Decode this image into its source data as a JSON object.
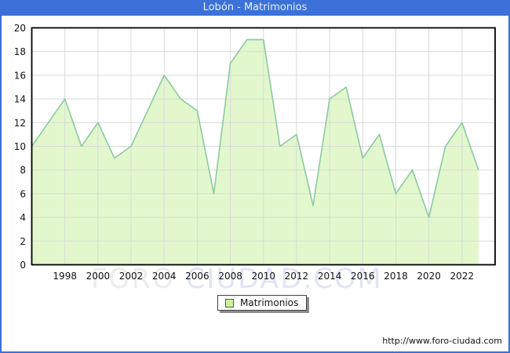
{
  "title": "Lobón - Matrimonios",
  "legend": {
    "label": "Matrimonios"
  },
  "watermark": {
    "part1": "FORO",
    "part2": "CIUDAD.COM"
  },
  "footer": {
    "url": "http://www.foro-ciudad.com"
  },
  "colors": {
    "titlebar_blue": "#3B71D8",
    "title_text": "#EAF0FA",
    "area_fill": "#E2F8CC",
    "line_green": "#8BC9A0",
    "gridline_gray": "#D9D9D9",
    "plot_border": "#000000",
    "axis_text": "#111111",
    "legend_swatch_fill": "#CBF59B",
    "watermark_gray": "#EDEDED",
    "watermark_lavender": "#E1E4F6"
  },
  "chart_data": {
    "type": "area",
    "title": "Lobón - Matrimonios",
    "series_name": "Matrimonios",
    "x": [
      1996,
      1997,
      1998,
      1999,
      2000,
      2001,
      2002,
      2003,
      2004,
      2005,
      2006,
      2007,
      2008,
      2009,
      2010,
      2011,
      2012,
      2013,
      2014,
      2015,
      2016,
      2017,
      2018,
      2019,
      2020,
      2021,
      2022,
      2023
    ],
    "values": [
      10,
      12,
      14,
      10,
      12,
      9,
      10,
      13,
      16,
      14,
      13,
      6,
      17,
      19,
      19,
      10,
      11,
      5,
      14,
      15,
      9,
      11,
      6,
      8,
      4,
      10,
      12,
      8
    ],
    "xlim": [
      1996,
      2024
    ],
    "ylim": [
      0,
      20
    ],
    "y_ticks": [
      0,
      2,
      4,
      6,
      8,
      10,
      12,
      14,
      16,
      18,
      20
    ],
    "x_tick_years": [
      1998,
      2000,
      2002,
      2004,
      2006,
      2008,
      2010,
      2012,
      2014,
      2016,
      2018,
      2020,
      2022
    ],
    "grid": true,
    "legend_position": "bottom"
  }
}
